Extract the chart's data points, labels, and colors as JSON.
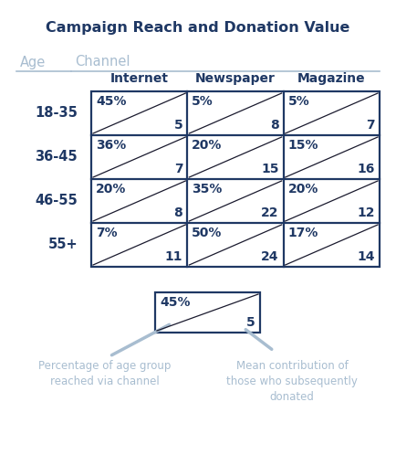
{
  "title": "Campaign Reach and Donation Value",
  "title_color": "#1f3864",
  "age_label": "Age",
  "channel_label": "Channel",
  "header_color": "#a8bdd0",
  "col_headers": [
    "Internet",
    "Newspaper",
    "Magazine"
  ],
  "row_headers": [
    "18-35",
    "36-45",
    "46-55",
    "55+"
  ],
  "cell_data": [
    [
      [
        "45%",
        "5"
      ],
      [
        "5%",
        "8"
      ],
      [
        "5%",
        "7"
      ]
    ],
    [
      [
        "36%",
        "7"
      ],
      [
        "20%",
        "15"
      ],
      [
        "15%",
        "16"
      ]
    ],
    [
      [
        "20%",
        "8"
      ],
      [
        "35%",
        "22"
      ],
      [
        "20%",
        "12"
      ]
    ],
    [
      [
        "7%",
        "11"
      ],
      [
        "50%",
        "24"
      ],
      [
        "17%",
        "14"
      ]
    ]
  ],
  "table_border_color": "#1f3864",
  "pct_color": "#1f3864",
  "val_color": "#1f3864",
  "row_header_color": "#1f3864",
  "col_header_color": "#1f3864",
  "legend_box_border": "#1f3864",
  "legend_pct": "45%",
  "legend_val": "5",
  "legend_label_left": "Percentage of age group\nreached via channel",
  "legend_label_right": "Mean contribution of\nthose who subsequently\ndonated",
  "annotation_color": "#a8bdd0",
  "bg_color": "#ffffff",
  "figw": 4.34,
  "figh": 5.21,
  "dpi": 100
}
